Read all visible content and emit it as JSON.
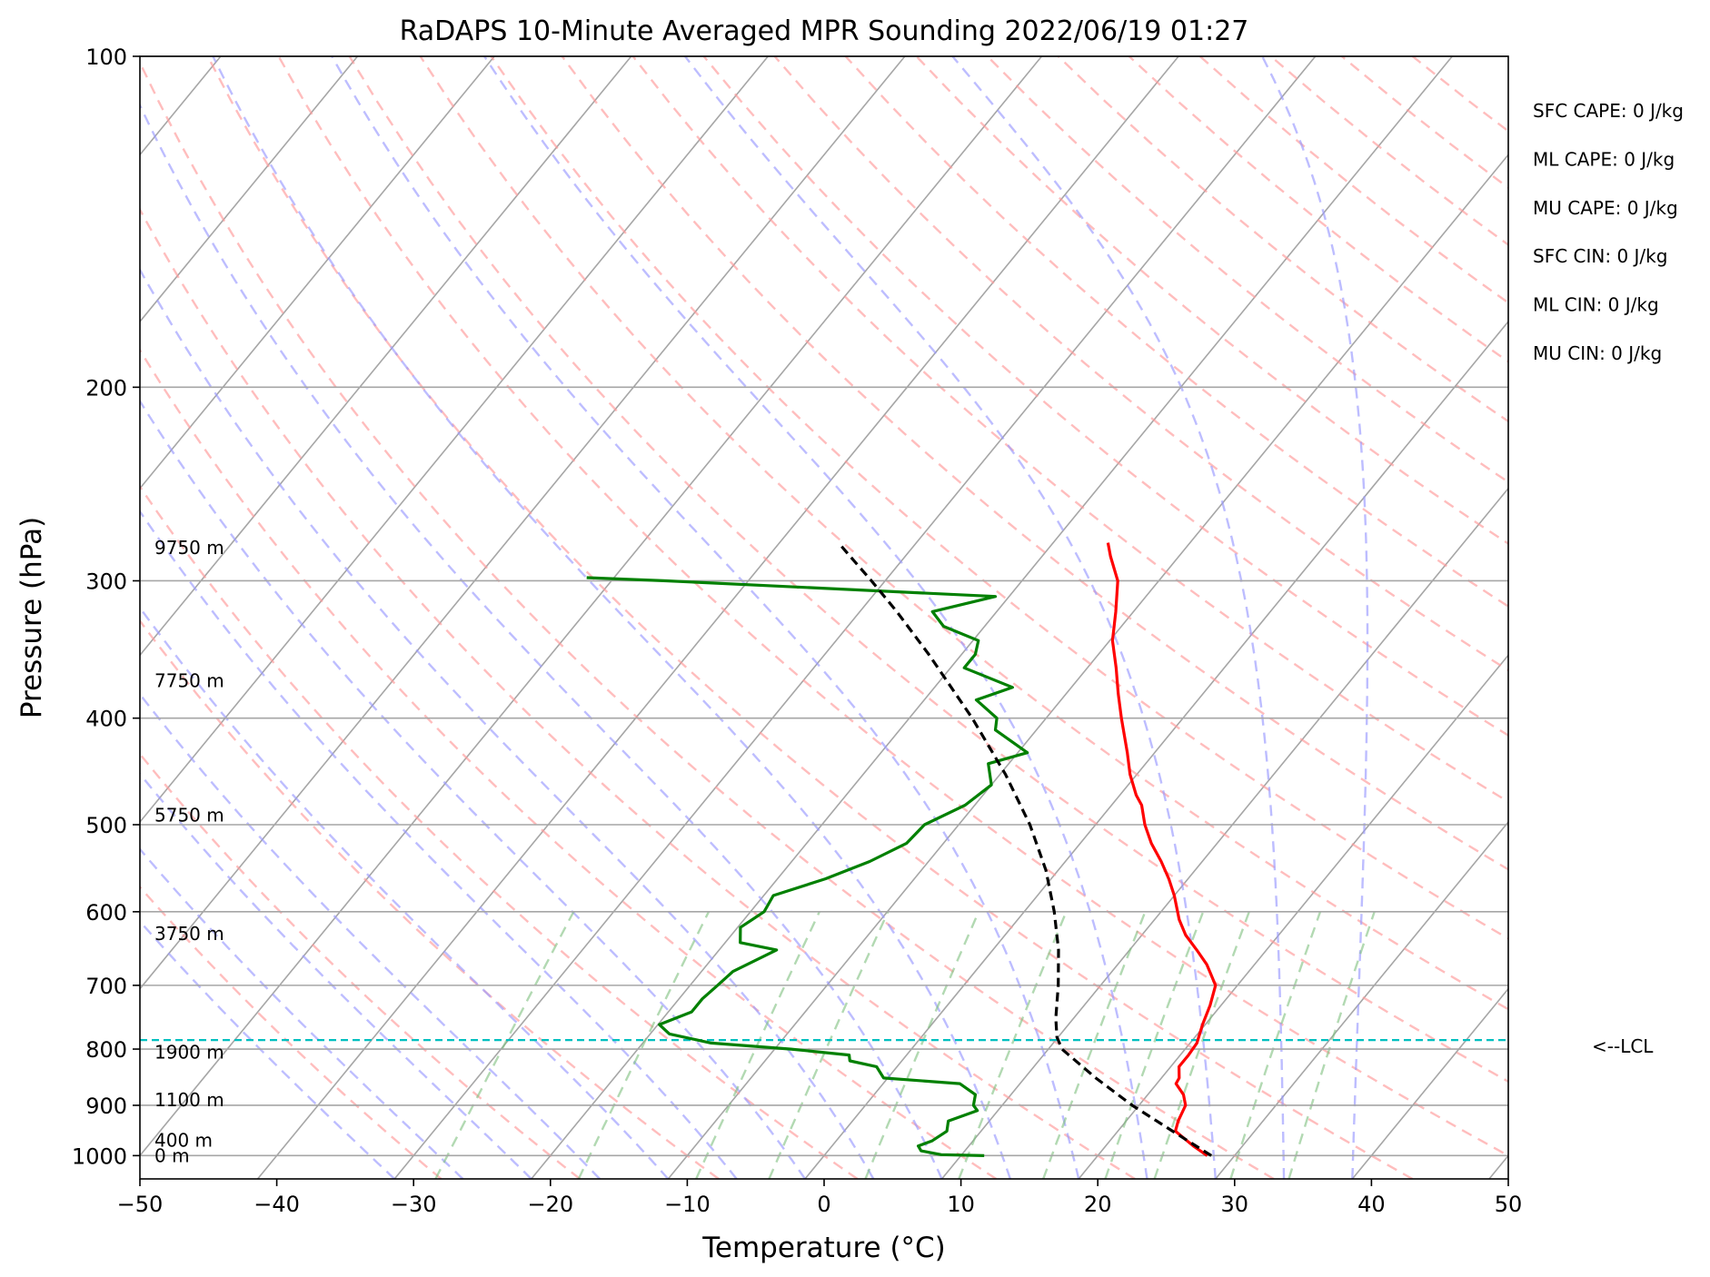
{
  "chart_data": {
    "type": "line",
    "title": "RaDAPS 10-Minute Averaged MPR Sounding 2022/06/19 01:27",
    "xlabel": "Temperature (°C)",
    "ylabel": "Pressure (hPa)",
    "xlim": [
      -50,
      50
    ],
    "ylim": [
      1050,
      100
    ],
    "y_scale": "log",
    "x_ticks": [
      "−50",
      "−40",
      "−30",
      "−20",
      "−10",
      "0",
      "10",
      "20",
      "30",
      "40",
      "50"
    ],
    "y_ticks": [
      "100",
      "200",
      "300",
      "400",
      "500",
      "600",
      "700",
      "800",
      "900",
      "1000"
    ],
    "grid": true,
    "series": [
      {
        "role": "temperature",
        "color": "#ff0000",
        "points": [
          [
            1000,
            28.0
          ],
          [
            980,
            26.4
          ],
          [
            950,
            24.2
          ],
          [
            930,
            23.8
          ],
          [
            900,
            23.4
          ],
          [
            880,
            22.6
          ],
          [
            860,
            21.4
          ],
          [
            850,
            21.3
          ],
          [
            830,
            20.6
          ],
          [
            810,
            20.6
          ],
          [
            790,
            20.5
          ],
          [
            760,
            19.8
          ],
          [
            730,
            19.2
          ],
          [
            700,
            18.4
          ],
          [
            670,
            16.5
          ],
          [
            650,
            14.9
          ],
          [
            630,
            13.2
          ],
          [
            610,
            11.8
          ],
          [
            580,
            10.0
          ],
          [
            560,
            8.6
          ],
          [
            540,
            7.0
          ],
          [
            520,
            5.2
          ],
          [
            500,
            3.6
          ],
          [
            480,
            2.2
          ],
          [
            470,
            1.2
          ],
          [
            450,
            -0.5
          ],
          [
            430,
            -2.0
          ],
          [
            400,
            -4.5
          ],
          [
            380,
            -6.2
          ],
          [
            360,
            -7.9
          ],
          [
            340,
            -9.8
          ],
          [
            320,
            -11.3
          ],
          [
            300,
            -13.0
          ],
          [
            285,
            -15.0
          ],
          [
            277,
            -16.0
          ]
        ]
      },
      {
        "role": "dewpoint",
        "color": "#008000",
        "points": [
          [
            1000,
            11.7
          ],
          [
            998,
            8.5
          ],
          [
            990,
            6.8
          ],
          [
            980,
            6.3
          ],
          [
            970,
            7.0
          ],
          [
            950,
            7.5
          ],
          [
            930,
            7.0
          ],
          [
            910,
            8.5
          ],
          [
            900,
            7.9
          ],
          [
            880,
            7.4
          ],
          [
            860,
            5.6
          ],
          [
            850,
            -0.3
          ],
          [
            830,
            -1.5
          ],
          [
            820,
            -3.8
          ],
          [
            810,
            -4.2
          ],
          [
            800,
            -8.8
          ],
          [
            790,
            -15.0
          ],
          [
            775,
            -18.6
          ],
          [
            760,
            -19.9
          ],
          [
            740,
            -18.3
          ],
          [
            720,
            -18.3
          ],
          [
            700,
            -18.0
          ],
          [
            680,
            -17.7
          ],
          [
            650,
            -15.8
          ],
          [
            640,
            -18.9
          ],
          [
            620,
            -19.8
          ],
          [
            600,
            -19.0
          ],
          [
            580,
            -19.3
          ],
          [
            560,
            -16.5
          ],
          [
            540,
            -14.3
          ],
          [
            520,
            -12.7
          ],
          [
            500,
            -12.5
          ],
          [
            480,
            -10.7
          ],
          [
            460,
            -10.0
          ],
          [
            440,
            -11.5
          ],
          [
            430,
            -9.3
          ],
          [
            410,
            -13.0
          ],
          [
            400,
            -13.6
          ],
          [
            385,
            -16.2
          ],
          [
            375,
            -14.3
          ],
          [
            360,
            -19.0
          ],
          [
            350,
            -19.0
          ],
          [
            340,
            -19.6
          ],
          [
            330,
            -23.0
          ],
          [
            320,
            -24.7
          ],
          [
            310,
            -21.0
          ],
          [
            300,
            -46.0
          ],
          [
            298,
            -52.0
          ]
        ]
      },
      {
        "role": "parcel",
        "color": "#000000",
        "points": [
          [
            1000,
            28.3
          ],
          [
            950,
            24.0
          ],
          [
            900,
            19.5
          ],
          [
            850,
            15.2
          ],
          [
            800,
            11.0
          ],
          [
            780,
            9.9
          ],
          [
            750,
            8.7
          ],
          [
            700,
            6.9
          ],
          [
            650,
            4.8
          ],
          [
            600,
            2.2
          ],
          [
            550,
            -0.9
          ],
          [
            500,
            -4.8
          ],
          [
            450,
            -9.6
          ],
          [
            400,
            -15.4
          ],
          [
            350,
            -22.4
          ],
          [
            320,
            -27.3
          ],
          [
            300,
            -31.0
          ],
          [
            277,
            -35.7
          ]
        ]
      }
    ],
    "lcl_pressure": 785,
    "lcl_label": "<--LCL",
    "height_labels": [
      {
        "label": "9750 m",
        "p": 280
      },
      {
        "label": "7750 m",
        "p": 370
      },
      {
        "label": "5750 m",
        "p": 490
      },
      {
        "label": "3750 m",
        "p": 628
      },
      {
        "label": "1900 m",
        "p": 805
      },
      {
        "label": "1100 m",
        "p": 890
      },
      {
        "label": "400 m",
        "p": 968
      },
      {
        "label": "0 m",
        "p": 1000
      }
    ],
    "indices": [
      "SFC CAPE: 0 J/kg",
      "ML CAPE: 0 J/kg",
      "MU CAPE: 0 J/kg",
      "SFC CIN: 0 J/kg",
      "ML CIN: 0 J/kg",
      "MU CIN: 0 J/kg"
    ],
    "reference_line_colors": {
      "isotherms": "#a6a6a6",
      "dry_adiabats": "#ff9a9a",
      "moist_adiabats": "#9999ff",
      "mixing_ratio": "#7fbf7f",
      "lcl": "#00bfbf"
    }
  }
}
